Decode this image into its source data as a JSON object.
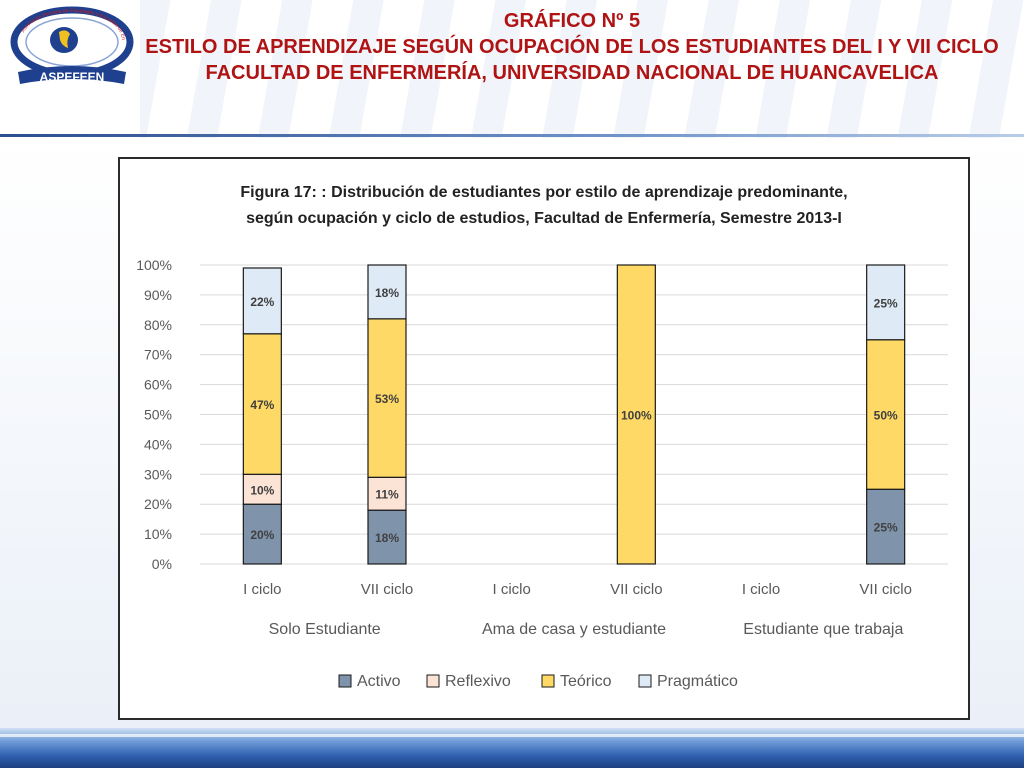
{
  "slide": {
    "title_line1": "GRÁFICO Nº  5",
    "title_line2": "ESTILO DE APRENDIZAJE SEGÚN OCUPACIÓN DE LOS ESTUDIANTES DEL I Y VII CICLO FACULTAD DE ENFERMERÍA, UNIVERSIDAD NACIONAL DE HUANCAVELICA"
  },
  "logo": {
    "name": "ASPEFEEN",
    "arc_text": "Asociación Peruana de Facultades y Escuelas de Enfermería",
    "ring_color": "#1f3f8f",
    "accent_color": "#f0c020"
  },
  "chart_data": {
    "type": "bar",
    "stacked": true,
    "title_line1": "Figura 17: : Distribución de estudiantes por estilo de aprendizaje predominante,",
    "title_line2": "según ocupación y ciclo de estudios, Facultad de Enfermería, Semestre 2013-I",
    "categories": [
      "I ciclo",
      "VII ciclo",
      "I ciclo",
      "VII ciclo",
      "I ciclo",
      "VII ciclo"
    ],
    "groups": [
      {
        "label": "Solo Estudiante",
        "span": [
          0,
          1
        ]
      },
      {
        "label": "Ama de casa y estudiante",
        "span": [
          2,
          3
        ]
      },
      {
        "label": "Estudiante que trabaja",
        "span": [
          4,
          5
        ]
      }
    ],
    "series": [
      {
        "name": "Activo",
        "color": "#7f93ab",
        "values": [
          20,
          18,
          0,
          0,
          0,
          25
        ],
        "labels": [
          "20%",
          "18%",
          "",
          "",
          "",
          "25%"
        ]
      },
      {
        "name": "Reflexivo",
        "color": "#fbe3d6",
        "values": [
          10,
          11,
          0,
          0,
          0,
          0
        ],
        "labels": [
          "10%",
          "11%",
          "",
          "",
          "",
          ""
        ]
      },
      {
        "name": "Teórico",
        "color": "#ffd966",
        "values": [
          47,
          53,
          0,
          100,
          0,
          50
        ],
        "labels": [
          "47%",
          "53%",
          "",
          "100%",
          "",
          "50%"
        ]
      },
      {
        "name": "Pragmático",
        "color": "#deebf7",
        "values": [
          22,
          18,
          0,
          0,
          0,
          25
        ],
        "labels": [
          "22%",
          "18%",
          "",
          "",
          "",
          "25%"
        ]
      }
    ],
    "ylim": [
      0,
      100
    ],
    "yticks": [
      "0%",
      "10%",
      "20%",
      "30%",
      "40%",
      "50%",
      "60%",
      "70%",
      "80%",
      "90%",
      "100%"
    ],
    "grid": true,
    "legend_position": "bottom"
  }
}
